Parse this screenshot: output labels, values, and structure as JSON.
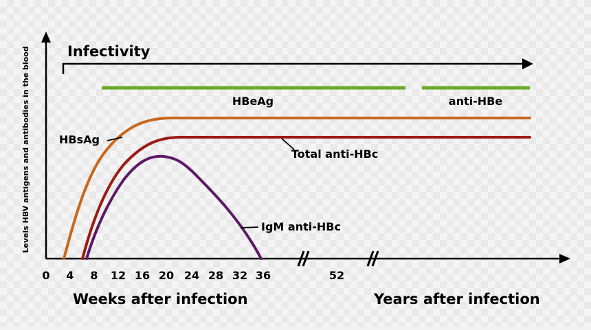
{
  "chart_data": {
    "type": "line",
    "title": "Infectivity",
    "xlabel_left": "Weeks after infection",
    "xlabel_right": "Years after infection",
    "ylabel": "Levels HBV antigens and antibodies in the blood",
    "x_ticks": [
      "0",
      "4",
      "8",
      "12",
      "16",
      "20",
      "24",
      "28",
      "32",
      "36",
      "52"
    ],
    "axis_break": "//",
    "series": [
      {
        "name": "HBsAg",
        "color": "#c8671c",
        "x": [
          3,
          6,
          9,
          12,
          15,
          18,
          21,
          60
        ],
        "y": [
          0,
          0.45,
          0.67,
          0.8,
          0.88,
          0.92,
          0.93,
          0.93
        ]
      },
      {
        "name": "Total anti-HBc",
        "color": "#9b1b14",
        "x": [
          6,
          9,
          12,
          15,
          18,
          21,
          23,
          60
        ],
        "y": [
          0,
          0.35,
          0.58,
          0.72,
          0.8,
          0.84,
          0.85,
          0.85
        ]
      },
      {
        "name": "IgM anti-HBc",
        "color": "#5c1a66",
        "x": [
          7,
          10,
          13,
          16,
          19,
          22,
          26,
          30,
          34,
          36
        ],
        "y": [
          0,
          0.35,
          0.55,
          0.68,
          0.72,
          0.68,
          0.52,
          0.33,
          0.12,
          0
        ]
      }
    ],
    "bars": [
      {
        "name": "HBeAg",
        "color": "#6aaa2a",
        "x_start": 9,
        "x_end": 55
      },
      {
        "name": "anti-HBe",
        "color": "#6aaa2a",
        "x_start": 57,
        "x_end": 60
      }
    ]
  }
}
